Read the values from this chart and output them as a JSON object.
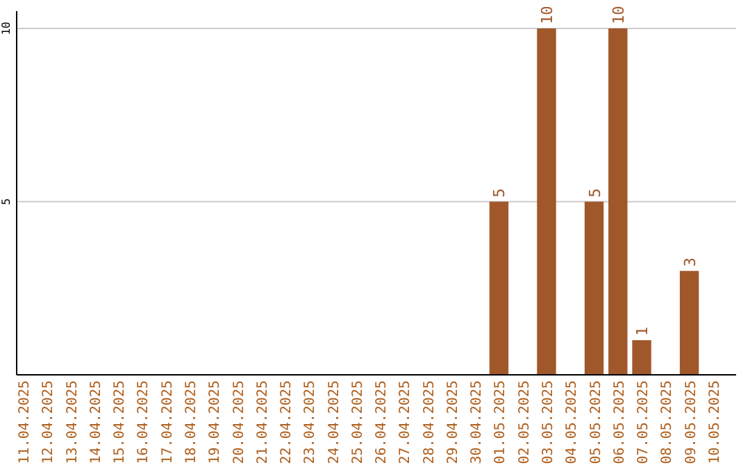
{
  "chart_data": {
    "type": "bar",
    "categories": [
      "11.04.2025",
      "12.04.2025",
      "13.04.2025",
      "14.04.2025",
      "15.04.2025",
      "16.04.2025",
      "17.04.2025",
      "18.04.2025",
      "19.04.2025",
      "20.04.2025",
      "21.04.2025",
      "22.04.2025",
      "23.04.2025",
      "24.04.2025",
      "25.04.2025",
      "26.04.2025",
      "27.04.2025",
      "28.04.2025",
      "29.04.2025",
      "30.04.2025",
      "01.05.2025",
      "02.05.2025",
      "03.05.2025",
      "04.05.2025",
      "05.05.2025",
      "06.05.2025",
      "07.05.2025",
      "08.05.2025",
      "09.05.2025",
      "10.05.2025"
    ],
    "values": [
      0,
      0,
      0,
      0,
      0,
      0,
      0,
      0,
      0,
      0,
      0,
      0,
      0,
      0,
      0,
      0,
      0,
      0,
      0,
      0,
      5,
      0,
      10,
      0,
      5,
      10,
      1,
      0,
      3,
      0
    ],
    "value_labels": [
      null,
      null,
      null,
      null,
      null,
      null,
      null,
      null,
      null,
      null,
      null,
      null,
      null,
      null,
      null,
      null,
      null,
      null,
      null,
      null,
      "5",
      null,
      "10",
      null,
      "5",
      "10",
      "1",
      null,
      "3",
      null
    ],
    "color": "#a0582a",
    "ylim": [
      0,
      10.5
    ],
    "yticks": [
      5,
      10
    ],
    "grid": "y"
  }
}
